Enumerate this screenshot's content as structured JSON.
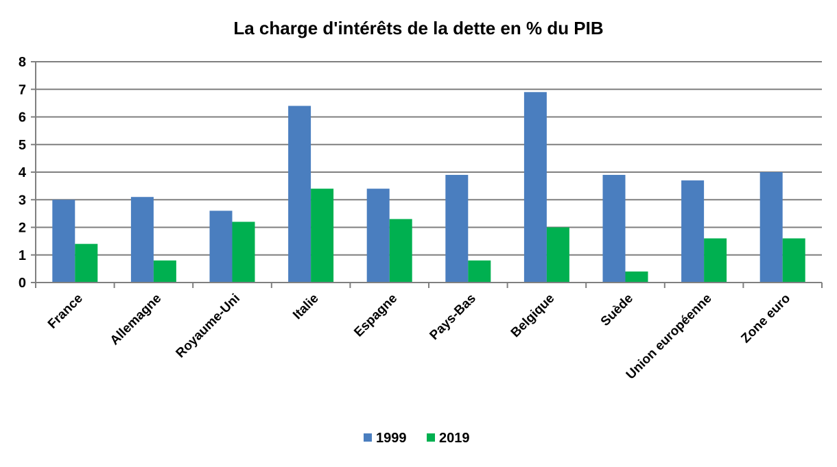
{
  "chart_data": {
    "type": "bar",
    "title": "La charge d'intérêts de la dette en % du PIB",
    "xlabel": "",
    "ylabel": "",
    "categories": [
      "France",
      "Allemagne",
      "Royaume-Uni",
      "Italie",
      "Espagne",
      "Pays-Bas",
      "Belgique",
      "Suède",
      "Union européenne",
      "Zone euro"
    ],
    "series": [
      {
        "name": "1999",
        "color": "#4a7ebf",
        "values": [
          3.0,
          3.1,
          2.6,
          6.4,
          3.4,
          3.9,
          6.9,
          3.9,
          3.7,
          4.0
        ]
      },
      {
        "name": "2019",
        "color": "#00b050",
        "values": [
          1.4,
          0.8,
          2.2,
          3.4,
          2.3,
          0.8,
          2.0,
          0.4,
          1.6,
          1.6
        ]
      }
    ],
    "ylim": [
      0,
      8
    ],
    "yticks": [
      "0",
      "1",
      "2",
      "3",
      "4",
      "5",
      "6",
      "7",
      "8"
    ],
    "grid": true,
    "legend_position": "bottom"
  }
}
